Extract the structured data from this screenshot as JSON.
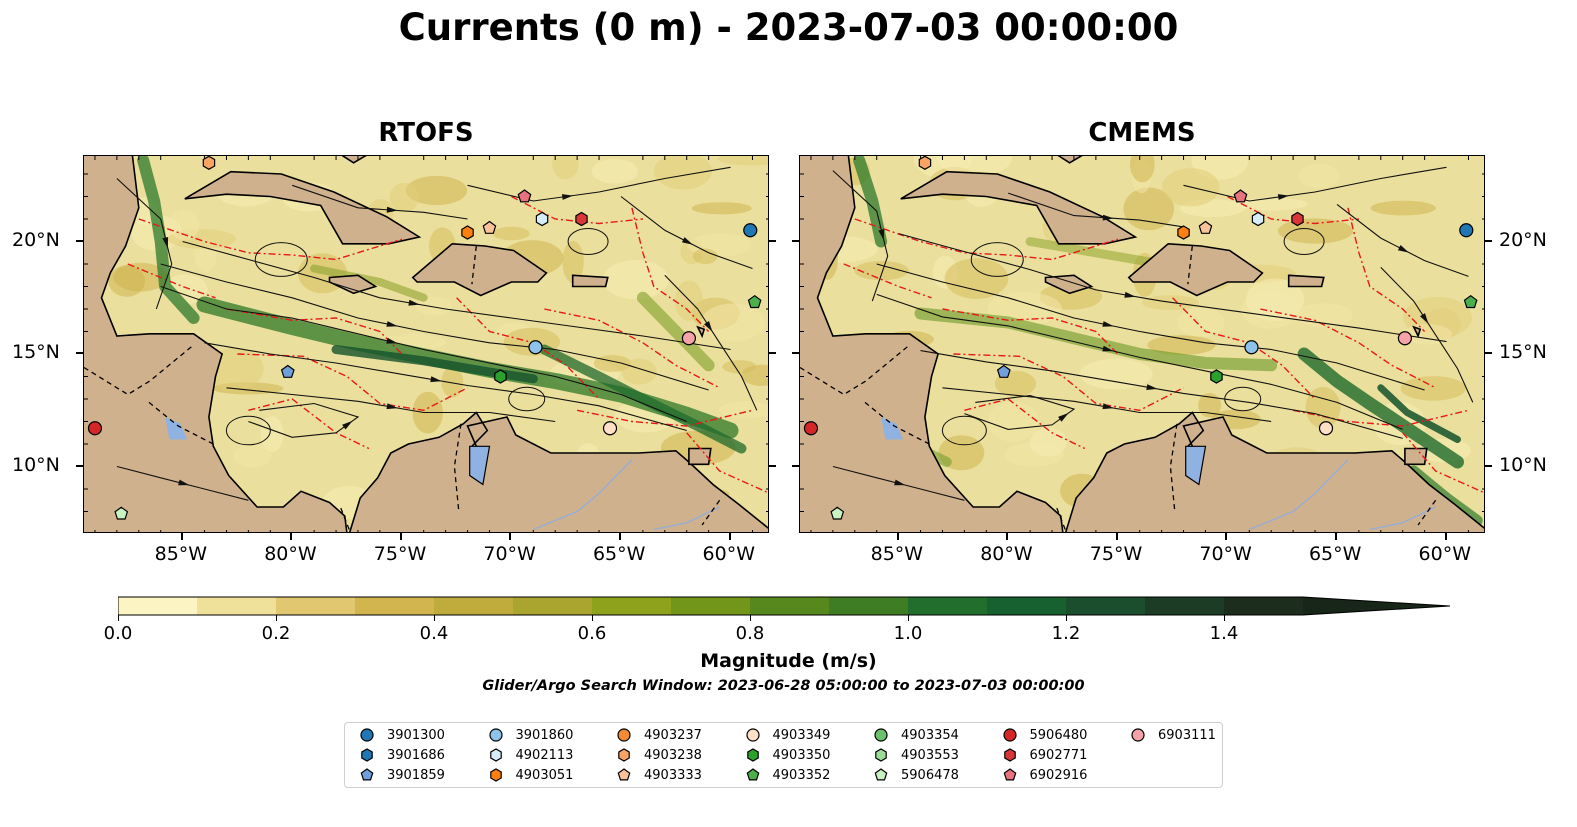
{
  "figure": {
    "title": "Currents (0 m) - 2023-07-03 00:00:00",
    "search_window_note": "Glider/Argo Search Window: 2023-06-28 05:00:00 to 2023-07-03 00:00:00"
  },
  "panels": [
    {
      "title": "RTOFS"
    },
    {
      "title": "CMEMS"
    }
  ],
  "axes": {
    "lon_labels": [
      "85°W",
      "80°W",
      "75°W",
      "70°W",
      "65°W",
      "60°W"
    ],
    "lon_values": [
      -85,
      -80,
      -75,
      -70,
      -65,
      -60
    ],
    "lat_labels": [
      "20°N",
      "15°N",
      "10°N"
    ],
    "lat_values": [
      20,
      15,
      10
    ],
    "lon_range": [
      -89.5,
      -58.2
    ],
    "lat_range": [
      7.0,
      23.8
    ]
  },
  "colorbar": {
    "label": "Magnitude (m/s)",
    "tick_labels": [
      "0.0",
      "0.2",
      "0.4",
      "0.6",
      "0.8",
      "1.0",
      "1.2",
      "1.4"
    ],
    "tick_values": [
      0.0,
      0.2,
      0.4,
      0.6,
      0.8,
      1.0,
      1.2,
      1.4
    ],
    "range": [
      0.0,
      1.5
    ],
    "extend": "max",
    "colors": [
      "#fcf5c3",
      "#efe09a",
      "#e0c770",
      "#d2b54f",
      "#bfac3d",
      "#a9a52e",
      "#8fa21c",
      "#71961a",
      "#57881e",
      "#3f7d24",
      "#226f2d",
      "#17602f",
      "#1a4e2c",
      "#1d3c26",
      "#1c2c1d"
    ]
  },
  "colors": {
    "land": "#d0b18e",
    "ocean_low": "#eadf9c",
    "eez_line": "#e8181a",
    "coast": "#000000",
    "lake": "#8fb2e2",
    "border": "#000000"
  },
  "floats": [
    {
      "id": "3901300",
      "marker": "circle",
      "color": "#1f77b4",
      "lon": -59.1,
      "lat": 20.5
    },
    {
      "id": "3901686",
      "marker": "hexagon",
      "color": "#1f77b4",
      "lon": null,
      "lat": null
    },
    {
      "id": "3901859",
      "marker": "pentagon",
      "color": "#6fa0dc",
      "lon": -80.2,
      "lat": 14.2
    },
    {
      "id": "3901860",
      "marker": "circle",
      "color": "#8ec4ec",
      "lon": -68.9,
      "lat": 15.3
    },
    {
      "id": "4902113",
      "marker": "hexagon",
      "color": "#d6ecf9",
      "lon": -68.6,
      "lat": 21.0
    },
    {
      "id": "4903051",
      "marker": "hexagon",
      "color": "#ff7f0e",
      "lon": -72.0,
      "lat": 20.4
    },
    {
      "id": "4903237",
      "marker": "circle",
      "color": "#f58b33",
      "lon": null,
      "lat": null
    },
    {
      "id": "4903238",
      "marker": "hexagon",
      "color": "#f9a462",
      "lon": -83.8,
      "lat": 23.5
    },
    {
      "id": "4903333",
      "marker": "pentagon",
      "color": "#fcc39a",
      "lon": -71.0,
      "lat": 20.6
    },
    {
      "id": "4903349",
      "marker": "circle",
      "color": "#fde0c6",
      "lon": -65.5,
      "lat": 11.7
    },
    {
      "id": "4903350",
      "marker": "hexagon",
      "color": "#2ca02c",
      "lon": -70.5,
      "lat": 14.0
    },
    {
      "id": "4903352",
      "marker": "pentagon",
      "color": "#4bb04b",
      "lon": -58.9,
      "lat": 17.3
    },
    {
      "id": "4903354",
      "marker": "circle",
      "color": "#6cc26c",
      "lon": null,
      "lat": null
    },
    {
      "id": "4903553",
      "marker": "hexagon",
      "color": "#9bdc96",
      "lon": null,
      "lat": null
    },
    {
      "id": "5906478",
      "marker": "pentagon",
      "color": "#c9f2c2",
      "lon": -87.8,
      "lat": 7.9
    },
    {
      "id": "5906480",
      "marker": "circle",
      "color": "#d62728",
      "lon": -89.0,
      "lat": 11.7
    },
    {
      "id": "6902771",
      "marker": "hexagon",
      "color": "#d9363a",
      "lon": -66.8,
      "lat": 21.0
    },
    {
      "id": "6902916",
      "marker": "pentagon",
      "color": "#e8737c",
      "lon": -69.4,
      "lat": 22.0
    },
    {
      "id": "6903111",
      "marker": "circle",
      "color": "#f5a3a8",
      "lon": -61.9,
      "lat": 15.7
    }
  ]
}
